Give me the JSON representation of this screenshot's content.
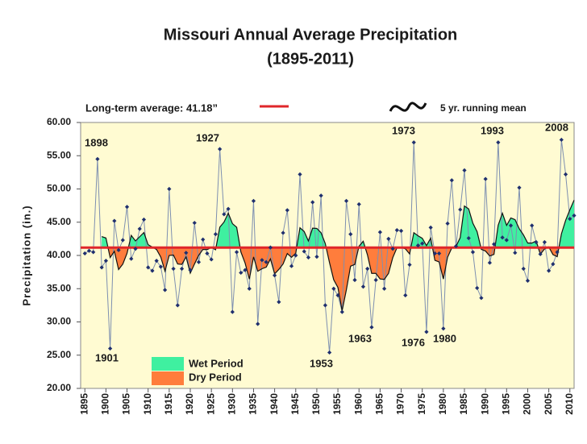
{
  "chart_data": {
    "type": "line",
    "title": "Missouri Annual Average Precipitation",
    "subtitle": "(1895-2011)",
    "y_label": "Precipitation (in.)",
    "average": 41.18,
    "average_label": "Long-term average: 41.18”",
    "average_color": "#e0262a",
    "x": [
      1895,
      1896,
      1897,
      1898,
      1899,
      1900,
      1901,
      1902,
      1903,
      1904,
      1905,
      1906,
      1907,
      1908,
      1909,
      1910,
      1911,
      1912,
      1913,
      1914,
      1915,
      1916,
      1917,
      1918,
      1919,
      1920,
      1921,
      1922,
      1923,
      1924,
      1925,
      1926,
      1927,
      1928,
      1929,
      1930,
      1931,
      1932,
      1933,
      1934,
      1935,
      1936,
      1937,
      1938,
      1939,
      1940,
      1941,
      1942,
      1943,
      1944,
      1945,
      1946,
      1947,
      1948,
      1949,
      1950,
      1951,
      1952,
      1953,
      1954,
      1955,
      1956,
      1957,
      1958,
      1959,
      1960,
      1961,
      1962,
      1963,
      1964,
      1965,
      1966,
      1967,
      1968,
      1969,
      1970,
      1971,
      1972,
      1973,
      1974,
      1975,
      1976,
      1977,
      1978,
      1979,
      1980,
      1981,
      1982,
      1983,
      1984,
      1985,
      1986,
      1987,
      1988,
      1989,
      1990,
      1991,
      1992,
      1993,
      1994,
      1995,
      1996,
      1997,
      1998,
      1999,
      2000,
      2001,
      2002,
      2003,
      2004,
      2005,
      2006,
      2007,
      2008,
      2009,
      2010,
      2011
    ],
    "series": [
      {
        "color": "#7d8fb0",
        "marker_color": "#1f2f6e",
        "values": [
          40.3,
          40.7,
          40.5,
          54.5,
          38.2,
          39.2,
          26.0,
          45.2,
          40.8,
          42.3,
          47.3,
          39.5,
          41.0,
          44.0,
          45.4,
          38.2,
          37.7,
          39.2,
          38.3,
          34.8,
          50.0,
          38.0,
          32.5,
          38.0,
          40.4,
          37.8,
          44.9,
          39.0,
          42.4,
          40.3,
          39.4,
          43.2,
          56.0,
          46.2,
          47.0,
          31.5,
          40.5,
          37.4,
          37.8,
          35.0,
          48.2,
          29.7,
          39.3,
          39.0,
          41.2,
          37.0,
          33.0,
          43.4,
          46.8,
          38.4,
          40.0,
          52.2,
          40.6,
          39.7,
          48.0,
          39.8,
          49.0,
          32.5,
          25.4,
          35.0,
          34.0,
          31.5,
          48.2,
          43.2,
          36.3,
          47.7,
          35.3,
          38.0,
          29.2,
          36.3,
          43.5,
          35.0,
          42.5,
          41.0,
          43.8,
          43.7,
          34.0,
          38.6,
          57.0,
          41.5,
          41.8,
          28.5,
          44.2,
          40.3,
          40.3,
          29.0,
          44.8,
          51.3,
          41.4,
          46.9,
          52.8,
          42.6,
          40.5,
          35.1,
          33.6,
          51.5,
          38.9,
          41.7,
          57.0,
          42.7,
          42.3,
          44.5,
          40.4,
          50.2,
          38.0,
          36.2,
          44.5,
          42.0,
          40.2,
          42.0,
          37.7,
          38.7,
          40.5,
          57.4,
          52.2,
          45.5,
          46.0
        ]
      },
      {
        "name": "5 yr. running mean",
        "color": "#111111",
        "values": [
          null,
          null,
          null,
          null,
          42.84,
          42.62,
          39.68,
          40.62,
          37.88,
          38.7,
          40.32,
          43.02,
          42.18,
          42.82,
          43.44,
          41.62,
          41.26,
          40.9,
          39.76,
          37.64,
          40.0,
          40.06,
          38.72,
          38.66,
          39.78,
          37.34,
          38.72,
          40.02,
          40.9,
          40.88,
          41.2,
          40.86,
          44.26,
          45.02,
          46.36,
          44.78,
          44.24,
          40.52,
          38.84,
          36.44,
          39.78,
          37.62,
          38.0,
          38.24,
          39.48,
          37.24,
          37.9,
          38.72,
          40.28,
          39.72,
          40.32,
          44.16,
          43.6,
          42.18,
          44.1,
          44.06,
          43.42,
          41.8,
          38.94,
          36.34,
          35.18,
          31.68,
          34.82,
          38.38,
          38.64,
          41.38,
          42.14,
          40.1,
          37.3,
          37.3,
          36.46,
          36.4,
          37.3,
          39.66,
          41.16,
          41.2,
          41.0,
          40.22,
          43.42,
          42.96,
          42.58,
          41.48,
          42.6,
          39.26,
          39.02,
          36.46,
          39.72,
          41.14,
          41.36,
          42.68,
          47.44,
          47.0,
          44.84,
          43.58,
          40.92,
          40.66,
          39.92,
          40.16,
          44.54,
          46.36,
          44.52,
          45.64,
          45.38,
          44.02,
          43.08,
          41.86,
          41.86,
          42.18,
          40.18,
          40.98,
          41.28,
          40.12,
          39.82,
          43.26,
          45.3,
          46.86,
          48.32
        ]
      }
    ],
    "fills": {
      "wet": {
        "label": "Wet Period",
        "color": "#3ff0a0"
      },
      "dry": {
        "label": "Dry Period",
        "color": "#ff7d3c"
      }
    },
    "annotations": [
      "1898",
      "1901",
      "1927",
      "1953",
      "1963",
      "1973",
      "1976",
      "1980",
      "1993",
      "2008"
    ],
    "xlim": [
      1894,
      2011
    ],
    "xticks": [
      1895,
      1900,
      1905,
      1910,
      1915,
      1920,
      1925,
      1930,
      1935,
      1940,
      1945,
      1950,
      1955,
      1960,
      1965,
      1970,
      1975,
      1980,
      1985,
      1990,
      1995,
      2000,
      2005,
      2010
    ],
    "ylim": [
      20,
      60
    ],
    "yticks": [
      {
        "value": 20,
        "label": "20.00"
      },
      {
        "value": 25,
        "label": "25.00"
      },
      {
        "value": 30,
        "label": "30.00"
      },
      {
        "value": 35,
        "label": "35.00"
      },
      {
        "value": 40,
        "label": "40.00"
      },
      {
        "value": 45,
        "label": "45.00"
      },
      {
        "value": 50,
        "label": "50.00"
      },
      {
        "value": 55,
        "label": "55.00"
      },
      {
        "value": 60,
        "label": "60.00"
      }
    ],
    "grid": false,
    "background": "#fffbd2"
  }
}
